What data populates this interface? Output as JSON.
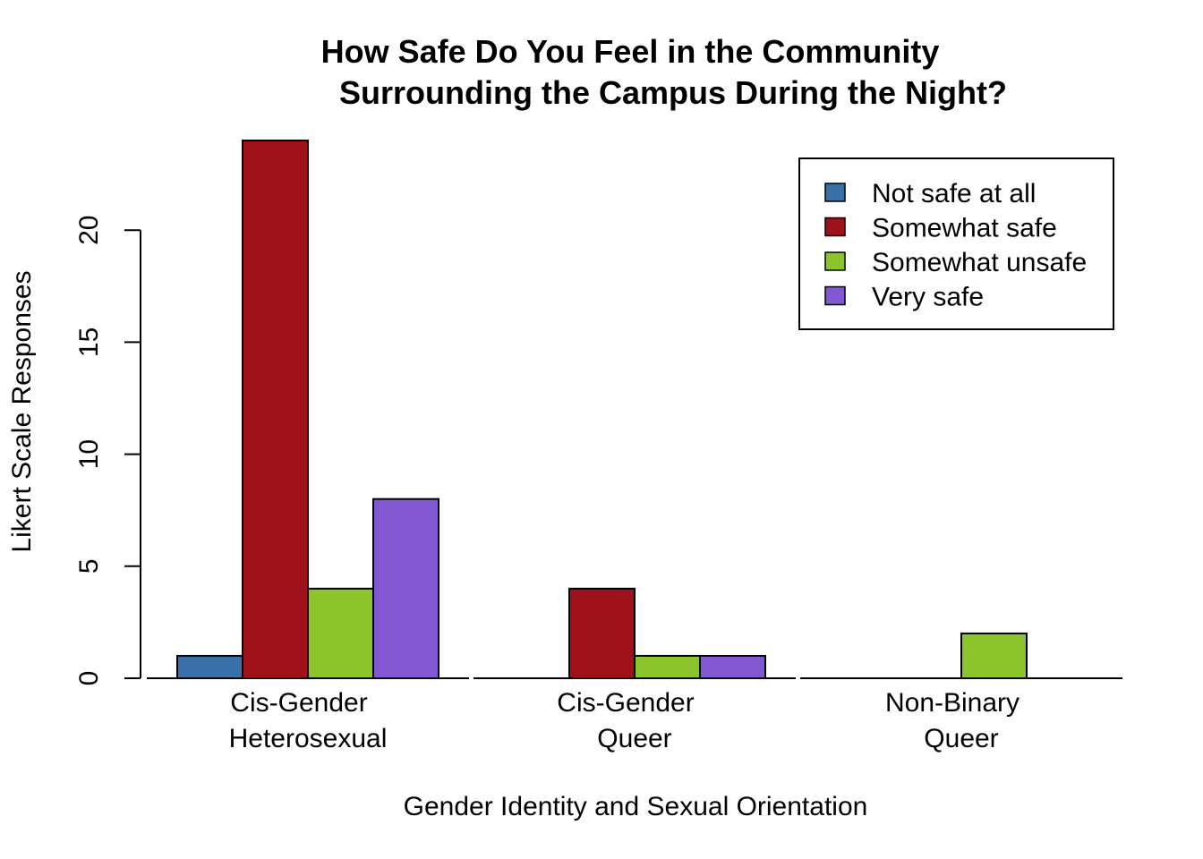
{
  "chart_data": {
    "type": "bar",
    "title": [
      "How Safe Do You Feel in the Community",
      "Surrounding the Campus During the Night?"
    ],
    "xlabel": "Gender Identity and Sexual Orientation",
    "ylabel": "Likert Scale Responses",
    "ylim": [
      0,
      24
    ],
    "yticks": [
      0,
      5,
      10,
      15,
      20
    ],
    "categories": [
      [
        "Cis-Gender",
        "Heterosexual"
      ],
      [
        "Cis-Gender",
        "Queer"
      ],
      [
        "Non-Binary",
        "Queer"
      ]
    ],
    "series": [
      {
        "name": "Not safe at all",
        "color": "#3a70aa",
        "values": [
          1,
          0,
          0
        ]
      },
      {
        "name": "Somewhat safe",
        "color": "#a0121b",
        "values": [
          24,
          4,
          0
        ]
      },
      {
        "name": "Somewhat unsafe",
        "color": "#8cc42b",
        "values": [
          4,
          1,
          2
        ]
      },
      {
        "name": "Very safe",
        "color": "#8157d2",
        "values": [
          8,
          1,
          0
        ]
      }
    ],
    "legend": "top-right",
    "grid": false
  }
}
